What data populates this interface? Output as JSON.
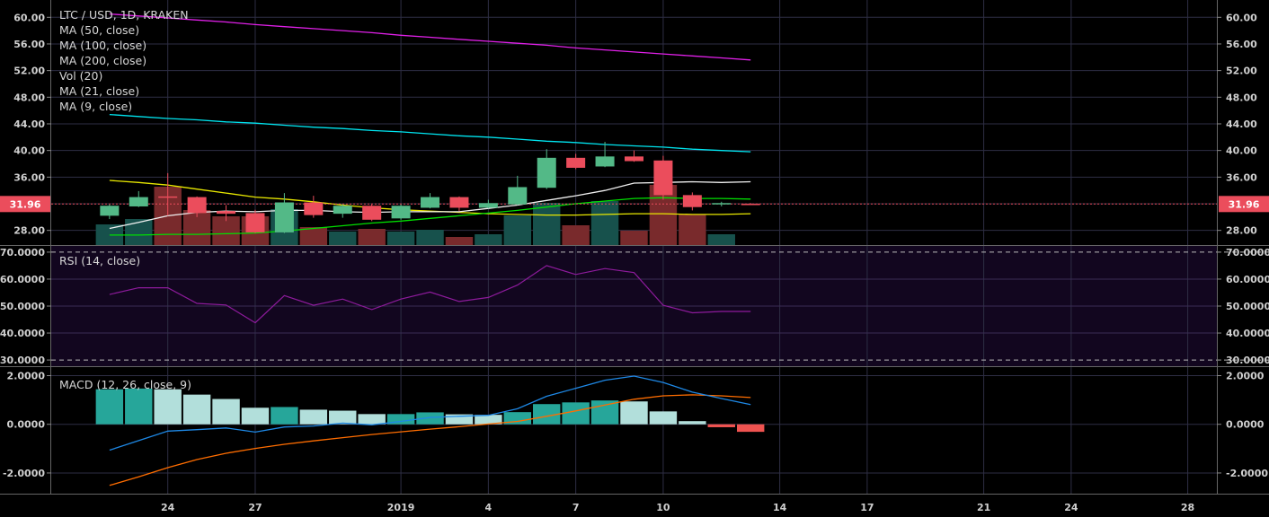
{
  "chart_data": {
    "type": "candlestick",
    "title": "LTC / USD, 1D, KRAKEN",
    "indicators": [
      "MA (50, close)",
      "MA (100, close)",
      "MA (200, close)",
      "Vol (20)",
      "MA (21, close)",
      "MA (9, close)"
    ],
    "last_price": "31.96",
    "x_ticks": [
      {
        "label": "24",
        "date": "2018-12-24"
      },
      {
        "label": "27",
        "date": "2018-12-27"
      },
      {
        "label": "2019",
        "date": "2019-01-01"
      },
      {
        "label": "4",
        "date": "2019-01-04"
      },
      {
        "label": "7",
        "date": "2019-01-07"
      },
      {
        "label": "10",
        "date": "2019-01-10"
      },
      {
        "label": "14",
        "date": "2019-01-14"
      },
      {
        "label": "17",
        "date": "2019-01-17"
      },
      {
        "label": "21",
        "date": "2019-01-21"
      },
      {
        "label": "24",
        "date": "2019-01-24"
      },
      {
        "label": "28",
        "date": "2019-01-28"
      }
    ],
    "x_range": [
      "2018-12-20",
      "2019-01-29"
    ],
    "dates": [
      "2018-12-22",
      "2018-12-23",
      "2018-12-24",
      "2018-12-25",
      "2018-12-26",
      "2018-12-27",
      "2018-12-28",
      "2018-12-29",
      "2018-12-30",
      "2018-12-31",
      "2019-01-01",
      "2019-01-02",
      "2019-01-03",
      "2019-01-04",
      "2019-01-05",
      "2019-01-06",
      "2019-01-07",
      "2019-01-08",
      "2019-01-09",
      "2019-01-10",
      "2019-01-11",
      "2019-01-12",
      "2019-01-13"
    ],
    "price": {
      "ylim": [
        25.8,
        62.6
      ],
      "y_ticks": [
        "60.00",
        "56.00",
        "52.00",
        "48.00",
        "44.00",
        "40.00",
        "36.00",
        "28.00"
      ],
      "grid_values": [
        60,
        56,
        52,
        48,
        44,
        40,
        36,
        32,
        28
      ],
      "open": [
        30.2,
        31.6,
        33.1,
        33.0,
        30.9,
        30.6,
        27.7,
        32.2,
        30.5,
        31.7,
        29.8,
        31.4,
        33.0,
        31.4,
        31.9,
        34.4,
        38.9,
        37.6,
        39.1,
        38.5,
        33.3,
        31.9,
        32.0
      ],
      "high": [
        31.9,
        33.9,
        36.6,
        33.1,
        31.8,
        31.1,
        33.6,
        33.2,
        31.9,
        31.9,
        31.9,
        33.6,
        33.1,
        32.6,
        36.2,
        40.2,
        39.5,
        41.3,
        40.0,
        39.2,
        33.7,
        32.3,
        32.1
      ],
      "low": [
        29.7,
        31.5,
        30.2,
        30.0,
        29.4,
        27.6,
        27.6,
        29.9,
        29.9,
        29.4,
        29.6,
        31.3,
        30.9,
        31.3,
        31.8,
        34.2,
        37.2,
        37.5,
        38.3,
        32.6,
        31.0,
        31.6,
        31.9
      ],
      "close": [
        31.7,
        33.0,
        32.9,
        30.6,
        30.5,
        27.7,
        32.2,
        30.3,
        31.7,
        29.6,
        31.7,
        33.0,
        31.4,
        32.1,
        34.5,
        38.9,
        37.4,
        39.1,
        38.4,
        33.3,
        31.5,
        32.1,
        31.96
      ],
      "volume_relative": [
        23,
        29,
        65,
        39,
        32,
        32,
        40,
        20,
        15,
        18,
        15,
        17,
        9,
        12,
        33,
        47,
        22,
        49,
        16,
        67,
        34,
        12,
        null
      ],
      "moving_averages": [
        {
          "name": "MA (200, close)",
          "color": "#e020e8",
          "values": [
            60.5,
            60.2,
            59.9,
            59.6,
            59.3,
            58.9,
            58.6,
            58.3,
            58.0,
            57.7,
            57.3,
            57.0,
            56.7,
            56.4,
            56.1,
            55.8,
            55.4,
            55.1,
            54.8,
            54.5,
            54.2,
            53.9,
            53.6
          ]
        },
        {
          "name": "MA (100, close)",
          "color": "#00e5f0",
          "values": [
            45.4,
            45.1,
            44.8,
            44.6,
            44.3,
            44.1,
            43.8,
            43.5,
            43.3,
            43.0,
            42.8,
            42.5,
            42.2,
            42.0,
            41.7,
            41.4,
            41.2,
            40.9,
            40.7,
            40.5,
            40.2,
            40.0,
            39.8
          ]
        },
        {
          "name": "MA (50, close)",
          "color": "#e8e800",
          "values": [
            35.5,
            35.2,
            34.8,
            34.2,
            33.6,
            33.0,
            32.7,
            32.3,
            31.8,
            31.4,
            31.1,
            30.9,
            30.7,
            30.5,
            30.4,
            30.3,
            30.3,
            30.4,
            30.5,
            30.5,
            30.4,
            30.4,
            30.5
          ]
        },
        {
          "name": "MA (21, close)",
          "color": "#00e000",
          "values": [
            27.3,
            27.3,
            27.4,
            27.4,
            27.5,
            27.6,
            27.9,
            28.3,
            28.7,
            29.1,
            29.4,
            29.8,
            30.2,
            30.6,
            31.0,
            31.5,
            32.0,
            32.4,
            32.8,
            32.9,
            32.8,
            32.8,
            32.7
          ]
        },
        {
          "name": "MA (9, close)",
          "color": "#f0f0f0",
          "values": [
            28.3,
            29.2,
            30.2,
            30.7,
            30.9,
            30.8,
            31.0,
            31.0,
            30.8,
            30.7,
            30.8,
            30.8,
            30.8,
            31.3,
            31.8,
            32.5,
            33.2,
            34.0,
            35.1,
            35.2,
            35.3,
            35.2,
            35.3
          ]
        }
      ],
      "up_color": "#53b987",
      "down_color": "#eb4d5c",
      "volume_up_color": "#17514c",
      "volume_down_color": "#792a2c"
    },
    "rsi": {
      "label": "RSI (14, close)",
      "ylim": [
        27.7,
        72.3
      ],
      "y_ticks": [
        "70.0000",
        "60.0000",
        "50.0000",
        "40.0000",
        "30.0000"
      ],
      "bands": [
        70,
        30
      ],
      "grid_values": [
        60,
        50,
        40
      ],
      "color": "#8e1b9c",
      "values": [
        54.3,
        56.8,
        56.8,
        51.0,
        50.4,
        43.8,
        53.9,
        50.3,
        52.6,
        48.7,
        52.6,
        55.2,
        51.7,
        53.2,
        57.8,
        65.0,
        61.7,
        63.9,
        62.4,
        50.3,
        47.5,
        48.0,
        48.0
      ]
    },
    "macd": {
      "label": "MACD (12, 26, close, 9)",
      "ylim": [
        -2.85,
        2.35
      ],
      "y_ticks": [
        "2.0000",
        "0.0000",
        "-2.0000"
      ],
      "grid_values": [
        2,
        0,
        -2
      ],
      "histogram": [
        1.44,
        1.47,
        1.44,
        1.22,
        1.04,
        0.68,
        0.71,
        0.6,
        0.56,
        0.42,
        0.42,
        0.49,
        0.41,
        0.39,
        0.5,
        0.83,
        0.9,
        0.98,
        0.94,
        0.53,
        0.13,
        -0.12,
        -0.31
      ],
      "macd_line": [
        -1.06,
        -0.67,
        -0.28,
        -0.22,
        -0.15,
        -0.32,
        -0.11,
        -0.07,
        0.05,
        -0.02,
        0.12,
        0.28,
        0.33,
        0.37,
        0.64,
        1.15,
        1.48,
        1.81,
        1.98,
        1.72,
        1.32,
        1.06,
        0.81
      ],
      "signal_line": [
        -2.51,
        -2.16,
        -1.78,
        -1.45,
        -1.19,
        -0.99,
        -0.82,
        -0.68,
        -0.55,
        -0.42,
        -0.31,
        -0.2,
        -0.1,
        0.01,
        0.12,
        0.33,
        0.55,
        0.79,
        1.03,
        1.17,
        1.21,
        1.17,
        1.1
      ],
      "macd_color": "#1e88e5",
      "signal_color": "#ff6d00",
      "hist_grow_above": "#26a69a",
      "hist_fall_above": "#b2dfdb",
      "hist_below": "#ef5350"
    },
    "grid": true,
    "background": "#000000",
    "rsi_background": "#12061f"
  }
}
